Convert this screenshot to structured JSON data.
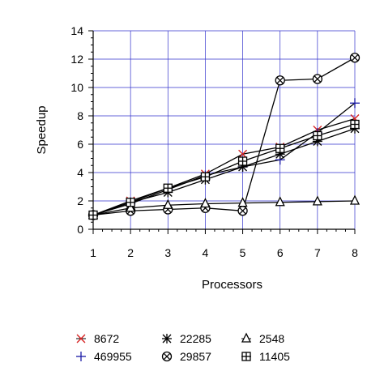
{
  "chart_data": {
    "type": "line",
    "xlabel": "Processors",
    "ylabel": "Speedup",
    "xlim": [
      1,
      8
    ],
    "ylim": [
      0,
      14
    ],
    "x_ticks": [
      "1",
      "2",
      "3",
      "4",
      "5",
      "6",
      "7",
      "8"
    ],
    "y_ticks": [
      "0",
      "2",
      "4",
      "6",
      "8",
      "10",
      "12",
      "14"
    ],
    "grid": true,
    "grid_color": "#3333cc",
    "legend_position": "bottom",
    "x": [
      1,
      2,
      3,
      4,
      5,
      6,
      7,
      8
    ],
    "series": [
      {
        "name": "8672",
        "marker": "x-marker",
        "color": "#d62020",
        "values": [
          1.0,
          2.0,
          2.9,
          3.9,
          5.3,
          5.8,
          7.0,
          7.8
        ]
      },
      {
        "name": "469955",
        "marker": "plus-marker",
        "color": "#1a1aa6",
        "values": [
          1.0,
          1.8,
          2.8,
          3.8,
          4.4,
          4.9,
          6.8,
          8.9
        ]
      },
      {
        "name": "22285",
        "marker": "asterisk-marker",
        "color": "#000000",
        "values": [
          1.0,
          1.9,
          2.6,
          3.5,
          4.4,
          5.3,
          6.2,
          7.1
        ]
      },
      {
        "name": "29857",
        "marker": "circle-x-marker",
        "color": "#000000",
        "values": [
          1.0,
          1.3,
          1.4,
          1.5,
          1.3,
          10.5,
          10.6,
          12.1
        ]
      },
      {
        "name": "2548",
        "marker": "triangle-marker",
        "color": "#000000",
        "values": [
          1.0,
          1.5,
          1.7,
          1.8,
          1.85,
          1.9,
          1.95,
          2.0
        ]
      },
      {
        "name": "11405",
        "marker": "square-plus-marker",
        "color": "#000000",
        "values": [
          1.0,
          1.9,
          2.9,
          3.7,
          4.8,
          5.7,
          6.6,
          7.4
        ]
      }
    ]
  }
}
